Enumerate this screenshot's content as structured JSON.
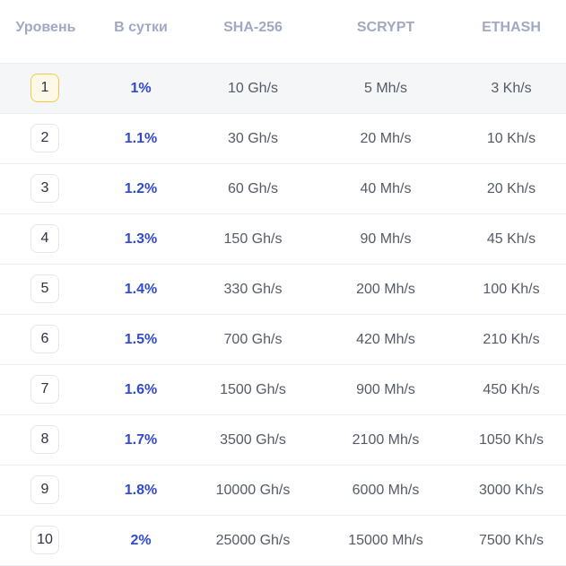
{
  "table": {
    "headers": {
      "level": "Уровень",
      "daily": "В сутки",
      "sha256": "SHA-256",
      "scrypt": "SCRYPT",
      "ethash": "ETHASH"
    },
    "rows": [
      {
        "level": "1",
        "daily": "1%",
        "sha256": "10 Gh/s",
        "scrypt": "5 Mh/s",
        "ethash": "3 Kh/s",
        "active": true
      },
      {
        "level": "2",
        "daily": "1.1%",
        "sha256": "30 Gh/s",
        "scrypt": "20 Mh/s",
        "ethash": "10 Kh/s"
      },
      {
        "level": "3",
        "daily": "1.2%",
        "sha256": "60 Gh/s",
        "scrypt": "40 Mh/s",
        "ethash": "20 Kh/s"
      },
      {
        "level": "4",
        "daily": "1.3%",
        "sha256": "150 Gh/s",
        "scrypt": "90 Mh/s",
        "ethash": "45 Kh/s"
      },
      {
        "level": "5",
        "daily": "1.4%",
        "sha256": "330 Gh/s",
        "scrypt": "200 Mh/s",
        "ethash": "100 Kh/s"
      },
      {
        "level": "6",
        "daily": "1.5%",
        "sha256": "700 Gh/s",
        "scrypt": "420 Mh/s",
        "ethash": "210 Kh/s"
      },
      {
        "level": "7",
        "daily": "1.6%",
        "sha256": "1500 Gh/s",
        "scrypt": "900 Mh/s",
        "ethash": "450 Kh/s"
      },
      {
        "level": "8",
        "daily": "1.7%",
        "sha256": "3500 Gh/s",
        "scrypt": "2100 Mh/s",
        "ethash": "1050 Kh/s"
      },
      {
        "level": "9",
        "daily": "1.8%",
        "sha256": "10000 Gh/s",
        "scrypt": "6000 Mh/s",
        "ethash": "3000 Kh/s"
      },
      {
        "level": "10",
        "daily": "2%",
        "sha256": "25000 Gh/s",
        "scrypt": "15000 Mh/s",
        "ethash": "7500 Kh/s"
      }
    ],
    "colors": {
      "accent_percent": "#2f49d1",
      "active_badge_border": "#f2c94c",
      "header_text": "#a3a8c2",
      "active_row_bg": "#f5f6f8"
    }
  }
}
